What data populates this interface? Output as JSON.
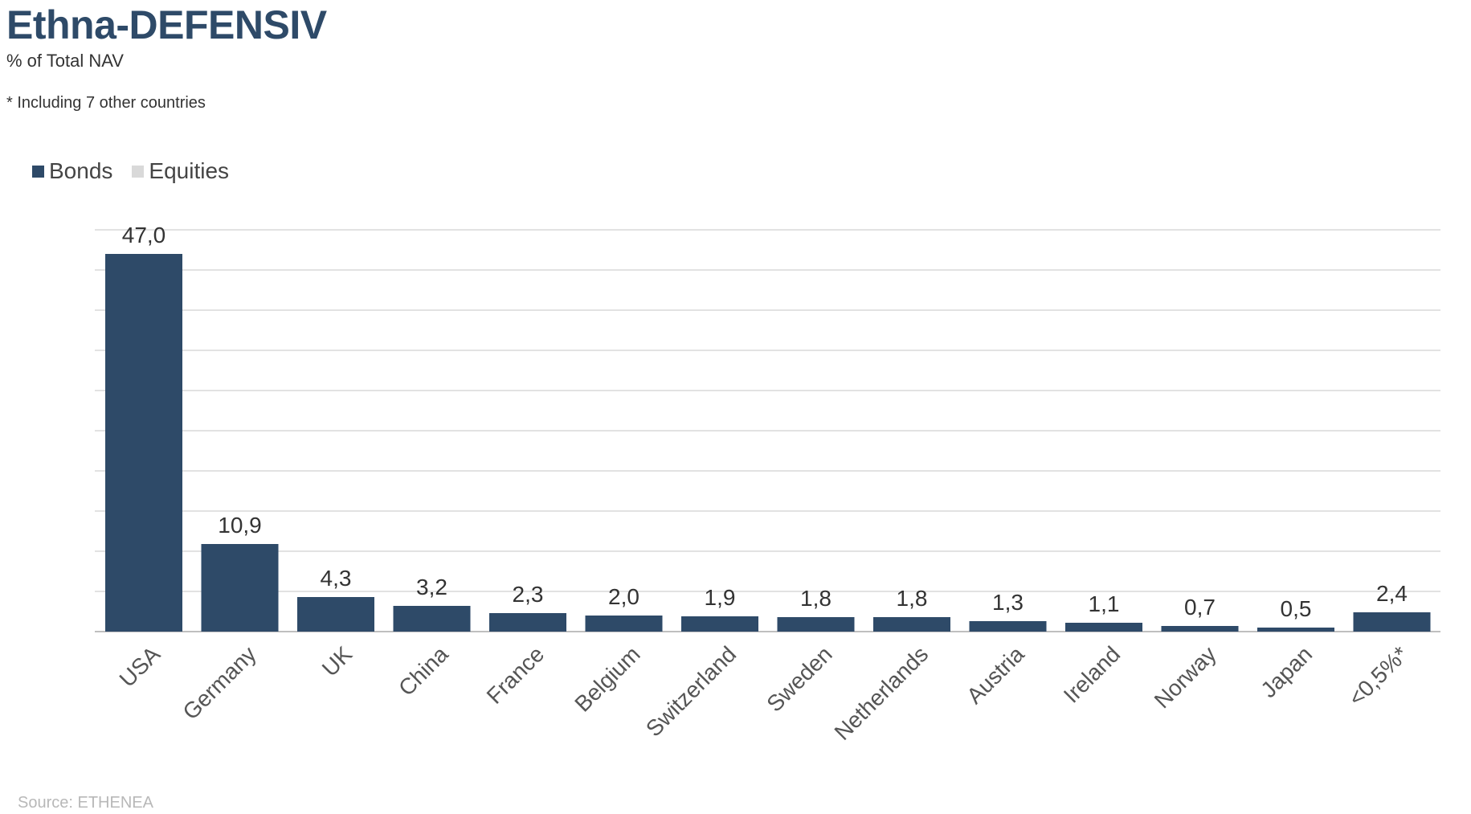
{
  "header": {
    "title": "Ethna-DEFENSIV",
    "subtitle": "% of Total NAV",
    "note": "* Including 7 other countries"
  },
  "legend": {
    "items": [
      {
        "label": "Bonds",
        "color": "#2e4a68"
      },
      {
        "label": "Equities",
        "color": "#d9d9d9"
      }
    ]
  },
  "footer": {
    "source": "Source: ETHENEA"
  },
  "chart_data": {
    "type": "bar",
    "title": "Ethna-DEFENSIV",
    "subtitle": "% of Total NAV",
    "categories": [
      "USA",
      "Germany",
      "UK",
      "China",
      "France",
      "Belgium",
      "Switzerland",
      "Sweden",
      "Netherlands",
      "Austria",
      "Ireland",
      "Norway",
      "Japan",
      "<0,5%*"
    ],
    "series": [
      {
        "name": "Bonds",
        "color": "#2e4a68",
        "values": [
          47.0,
          10.9,
          4.3,
          3.2,
          2.3,
          2.0,
          1.9,
          1.8,
          1.8,
          1.3,
          1.1,
          0.7,
          0.5,
          2.4
        ],
        "labels": [
          "47,0",
          "10,9",
          "4,3",
          "3,2",
          "2,3",
          "2,0",
          "1,9",
          "1,8",
          "1,8",
          "1,3",
          "1,1",
          "0,7",
          "0,5",
          "2,4"
        ]
      },
      {
        "name": "Equities",
        "color": "#d9d9d9",
        "values": [
          0,
          0,
          0,
          0,
          0,
          0,
          0,
          0,
          0,
          0,
          0,
          0,
          0,
          0
        ]
      }
    ],
    "ylim": [
      0,
      50
    ],
    "gridlines": true,
    "legend_position": "top-left",
    "xlabel": "",
    "ylabel": ""
  }
}
